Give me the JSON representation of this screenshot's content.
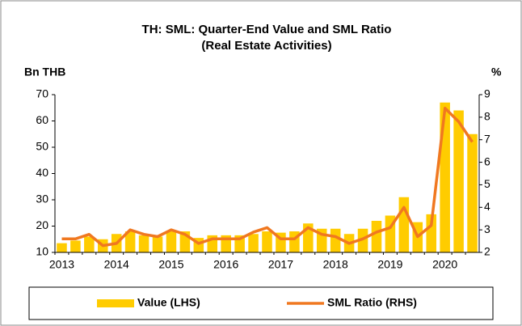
{
  "chart_data": {
    "type": "bar_line",
    "title": "TH: SML: Quarter-End Value and SML Ratio",
    "subtitle": "(Real Estate Activities)",
    "y_label": "Bn THB",
    "y2_label": "%",
    "categories": [
      "2013",
      null,
      null,
      null,
      "2014",
      null,
      null,
      null,
      "2015",
      null,
      null,
      null,
      "2016",
      null,
      null,
      null,
      "2017",
      null,
      null,
      null,
      "2018",
      null,
      null,
      null,
      "2019",
      null,
      null,
      null,
      "2020",
      null,
      null
    ],
    "series": [
      {
        "name": "Value (LHS)",
        "color": "#ffcc00",
        "type": "bar",
        "axis": "y",
        "values": [
          13.5,
          14.5,
          16,
          15,
          17,
          18,
          16.5,
          16,
          18,
          18,
          15.5,
          16.5,
          16.5,
          16.5,
          17,
          18,
          17.5,
          18,
          21,
          19,
          19,
          17,
          19,
          22,
          24,
          31,
          21.5,
          24.5,
          67,
          64,
          55
        ]
      },
      {
        "name": "SML Ratio (RHS)",
        "color": "#f07820",
        "type": "line",
        "axis": "y2",
        "values": [
          2.6,
          2.6,
          2.8,
          2.3,
          2.4,
          3.0,
          2.8,
          2.7,
          3.0,
          2.8,
          2.4,
          2.6,
          2.6,
          2.6,
          2.9,
          3.1,
          2.6,
          2.6,
          3.1,
          2.8,
          2.7,
          2.4,
          2.6,
          2.9,
          3.1,
          4.0,
          2.7,
          3.2,
          8.4,
          7.8,
          6.9
        ]
      }
    ],
    "ylim": [
      10,
      70
    ],
    "yticks": [
      10,
      20,
      30,
      40,
      50,
      60,
      70
    ],
    "y2lim": [
      2,
      9
    ],
    "y2ticks": [
      2,
      3,
      4,
      5,
      6,
      7,
      8,
      9
    ],
    "legend": "bottom"
  }
}
